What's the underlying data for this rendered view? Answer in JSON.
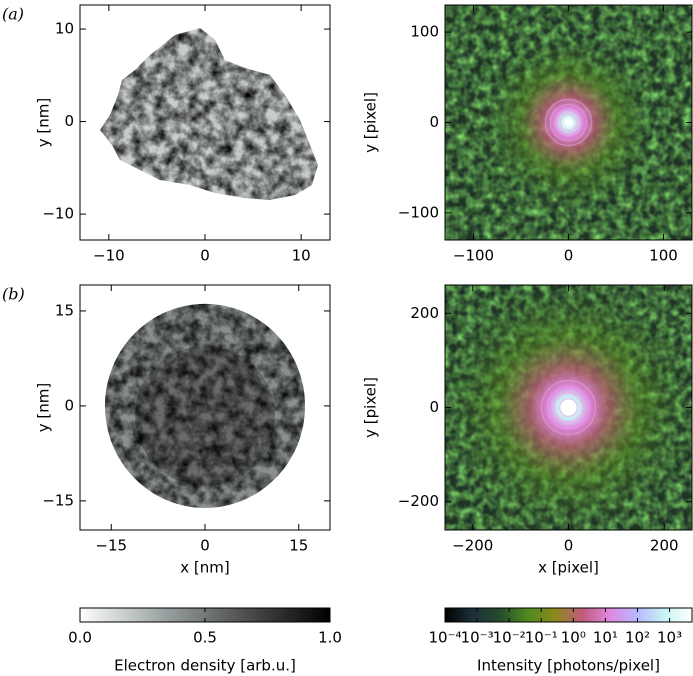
{
  "chart_data": [
    {
      "type": "heatmap",
      "colormap": "gray_r",
      "panel_label": "(a)",
      "ylabel": "y [nm]",
      "xlim": [
        -13,
        13
      ],
      "ylim": [
        -12.8,
        12.6
      ],
      "xticks": [
        {
          "value": -10,
          "label": "−10"
        },
        0,
        10
      ],
      "yticks": [
        {
          "value": -10,
          "label": "−10"
        },
        0,
        10
      ]
    },
    {
      "type": "heatmap",
      "colormap": "intensity",
      "ylabel": "y [pixel]",
      "xlim": [
        -130,
        130
      ],
      "ylim": [
        -130,
        130
      ],
      "xticks": [
        {
          "value": -100,
          "label": "−100"
        },
        0,
        100
      ],
      "yticks": [
        {
          "value": -100,
          "label": "−100"
        },
        0,
        100
      ]
    },
    {
      "type": "heatmap",
      "colormap": "gray_r",
      "panel_label": "(b)",
      "ylabel": "y [nm]",
      "xlabel": "x [nm]",
      "xlim": [
        -20,
        20
      ],
      "ylim": [
        -19.6,
        19.1
      ],
      "xticks": [
        {
          "value": -15,
          "label": "−15"
        },
        0,
        15
      ],
      "yticks": [
        {
          "value": -15,
          "label": "−15"
        },
        0,
        15
      ]
    },
    {
      "type": "heatmap",
      "colormap": "intensity",
      "ylabel": "y [pixel]",
      "xlabel": "x [pixel]",
      "xlim": [
        -258,
        258
      ],
      "ylim": [
        -260,
        260
      ],
      "xticks": [
        {
          "value": -200,
          "label": "−200"
        },
        0,
        200
      ],
      "yticks": [
        {
          "value": -200,
          "label": "−200"
        },
        0,
        200
      ]
    },
    {
      "type": "colorbar",
      "label": "Electron density [arb.u.]",
      "log": false,
      "clim": [
        0,
        1
      ],
      "colors": [
        "#ffffff",
        "#9aa3a3",
        "#4d4d4d",
        "#000000"
      ],
      "ticks": [
        {
          "value": 0,
          "label": "0.0"
        },
        0.5,
        {
          "value": 1,
          "label": "1.0"
        }
      ]
    },
    {
      "type": "colorbar",
      "label": "Intensity [photons/pixel]",
      "log": true,
      "clim": [
        0.0001,
        5000
      ],
      "colors": [
        "#000000",
        "#1d2f3a",
        "#264a2c",
        "#4f8a1e",
        "#8a8a1a",
        "#c05a7a",
        "#e088e0",
        "#b8b8ff",
        "#c8f4f4",
        "#ffffff"
      ],
      "ticks": [
        {
          "value": 0.0001,
          "label": "10⁻⁴"
        },
        {
          "value": 0.001,
          "label": "10⁻³"
        },
        {
          "value": 0.01,
          "label": "10⁻²"
        },
        {
          "value": 0.1,
          "label": "10⁻¹"
        },
        {
          "value": 1,
          "label": "10⁰"
        },
        {
          "value": 10,
          "label": "10¹"
        },
        {
          "value": 100,
          "label": "10²"
        },
        {
          "value": 1000,
          "label": "10³"
        }
      ]
    }
  ]
}
